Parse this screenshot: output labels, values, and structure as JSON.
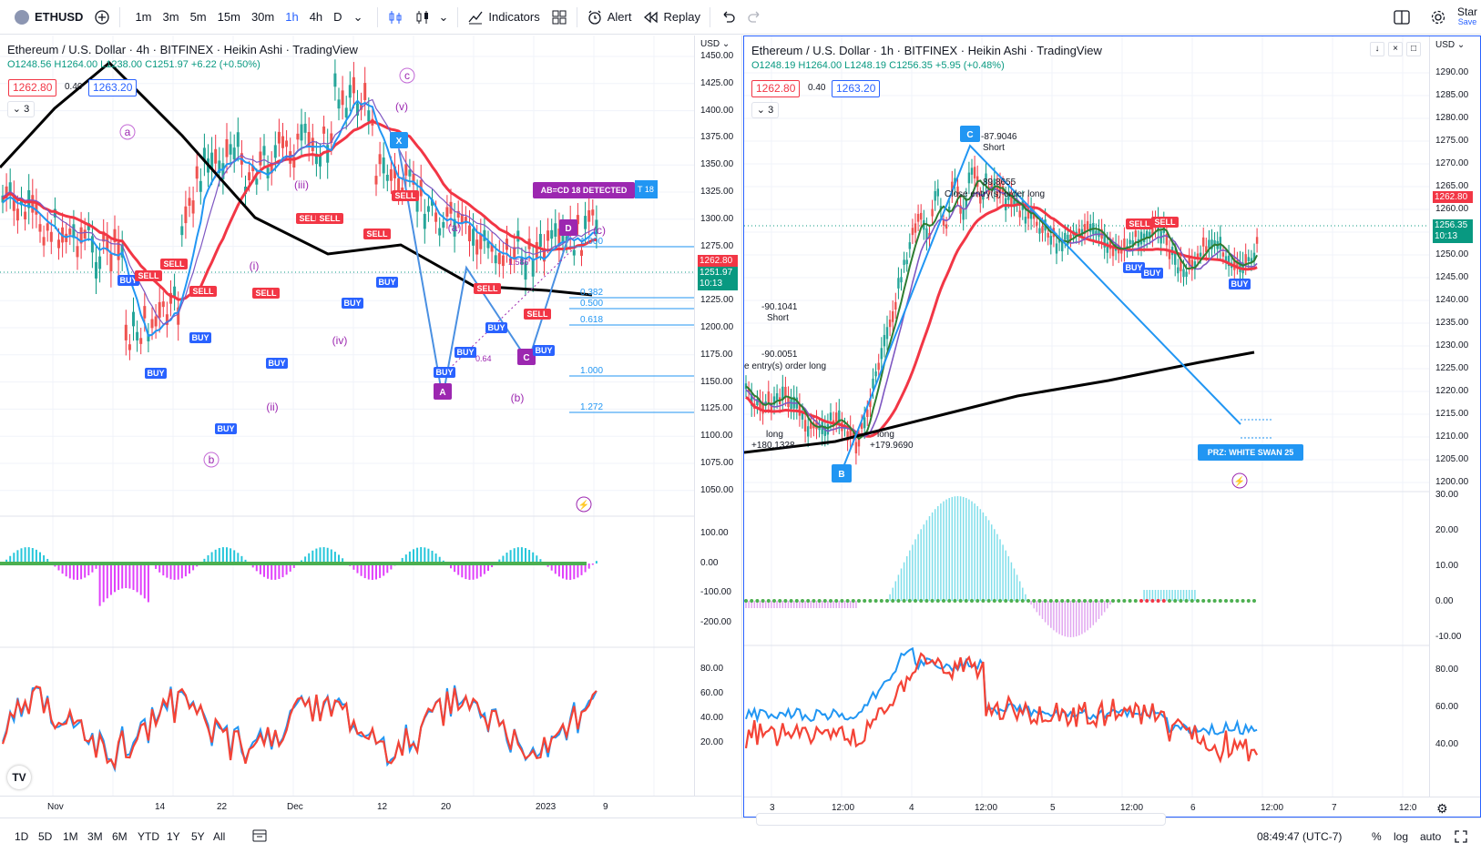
{
  "toolbar": {
    "symbol": "ETHUSD",
    "timeframes": [
      "1m",
      "3m",
      "5m",
      "15m",
      "30m",
      "1h",
      "4h",
      "D"
    ],
    "active_timeframe": "1h",
    "indicators_label": "Indicators",
    "alert_label": "Alert",
    "replay_label": "Replay",
    "star_label": "Star",
    "save_label": "Save"
  },
  "left_chart": {
    "title": "Ethereum / U.S. Dollar · 4h · BITFINEX · Heikin Ashi · TradingView",
    "ohlc": {
      "o": "O1248.56",
      "h": "H1264.00",
      "l": "L1238.00",
      "c": "C1251.97",
      "chg": "+6.22 (+0.50%)"
    },
    "bid": "1262.80",
    "spread": "0.40",
    "ask": "1263.20",
    "collapse_count": "3",
    "currency": "USD",
    "price_axis": [
      "1450.00",
      "1425.00",
      "1400.00",
      "1375.00",
      "1350.00",
      "1325.00",
      "1300.00",
      "1275.00",
      "1250.00",
      "1225.00",
      "1200.00",
      "1175.00",
      "1150.00",
      "1125.00",
      "1100.00",
      "1075.00",
      "1050.00"
    ],
    "current_price_red": "1262.80",
    "current_price": "1251.97",
    "countdown": "10:13",
    "macd_axis": [
      "100.00",
      "0.00",
      "-100.00",
      "-200.00"
    ],
    "rsi_axis": [
      "80.00",
      "60.00",
      "40.00",
      "20.00"
    ],
    "time_axis": [
      "Nov",
      "14",
      "22",
      "Dec",
      "12",
      "20",
      "2023",
      "9"
    ],
    "wave_labels": [
      "a",
      "b",
      "c",
      "(v)",
      "(iii)",
      "(i)",
      "(ii)",
      "(iv)",
      "(a)",
      "(b)",
      "(c)"
    ],
    "pattern_points": [
      "X",
      "A",
      "C",
      "D"
    ],
    "abcd_label": "AB=CD 18 DETECTED",
    "abcd_tag2": "T 18",
    "fib_levels": [
      "1.000",
      "0.382",
      "0.500",
      "0.618",
      "1.000",
      "1.272"
    ],
    "ratios": [
      "1.586",
      "0.64"
    ],
    "buy_label": "BUY",
    "sell_label": "SELL"
  },
  "right_chart": {
    "title": "Ethereum / U.S. Dollar · 1h · BITFINEX · Heikin Ashi · TradingView",
    "ohlc": {
      "o": "O1248.19",
      "h": "H1264.00",
      "l": "L1248.19",
      "c": "C1256.35",
      "chg": "+5.95 (+0.48%)"
    },
    "bid": "1262.80",
    "spread": "0.40",
    "ask": "1263.20",
    "collapse_count": "3",
    "currency": "USD",
    "price_axis": [
      "1290.00",
      "1285.00",
      "1280.00",
      "1275.00",
      "1270.00",
      "1265.00",
      "1260.00",
      "1255.00",
      "1250.00",
      "1245.00",
      "1240.00",
      "1235.00",
      "1230.00",
      "1225.00",
      "1220.00",
      "1215.00",
      "1210.00",
      "1205.00",
      "1200.00"
    ],
    "current_price_red": "1262.80",
    "current_price": "1256.35",
    "countdown": "10:13",
    "macd_axis": [
      "30.00",
      "20.00",
      "10.00",
      "0.00",
      "-10.00"
    ],
    "rsi_axis": [
      "80.00",
      "60.00",
      "40.00"
    ],
    "time_axis": [
      "3",
      "12:00",
      "4",
      "12:00",
      "5",
      "12:00",
      "6",
      "12:00",
      "7",
      "12:0"
    ],
    "points": [
      "C",
      "B"
    ],
    "annotations": {
      "c_value": "-87.9046",
      "c_short": "Short",
      "close_val": "89.8655",
      "close_entry": "Close entry(s) order long",
      "left_val": "-90.1041",
      "left_short": "Short",
      "left_val2": "-90.0051",
      "left_entry": "e entry(s) order long",
      "long1": "long",
      "long1_val": "+180.1328",
      "long2": "long",
      "long2_val": "+179.9690"
    },
    "prz_label": "PRZ: WHITE SWAN 25",
    "buy_label": "BUY",
    "sell_label": "SELL"
  },
  "bottom": {
    "ranges": [
      "1D",
      "5D",
      "1M",
      "3M",
      "6M",
      "YTD",
      "1Y",
      "5Y",
      "All"
    ],
    "clock": "08:49:47 (UTC-7)",
    "percent": "%",
    "log": "log",
    "auto": "auto"
  },
  "colors": {
    "up": "#089981",
    "down": "#f23645",
    "blue": "#2962ff",
    "purple": "#9c27b0",
    "black": "#000000"
  }
}
